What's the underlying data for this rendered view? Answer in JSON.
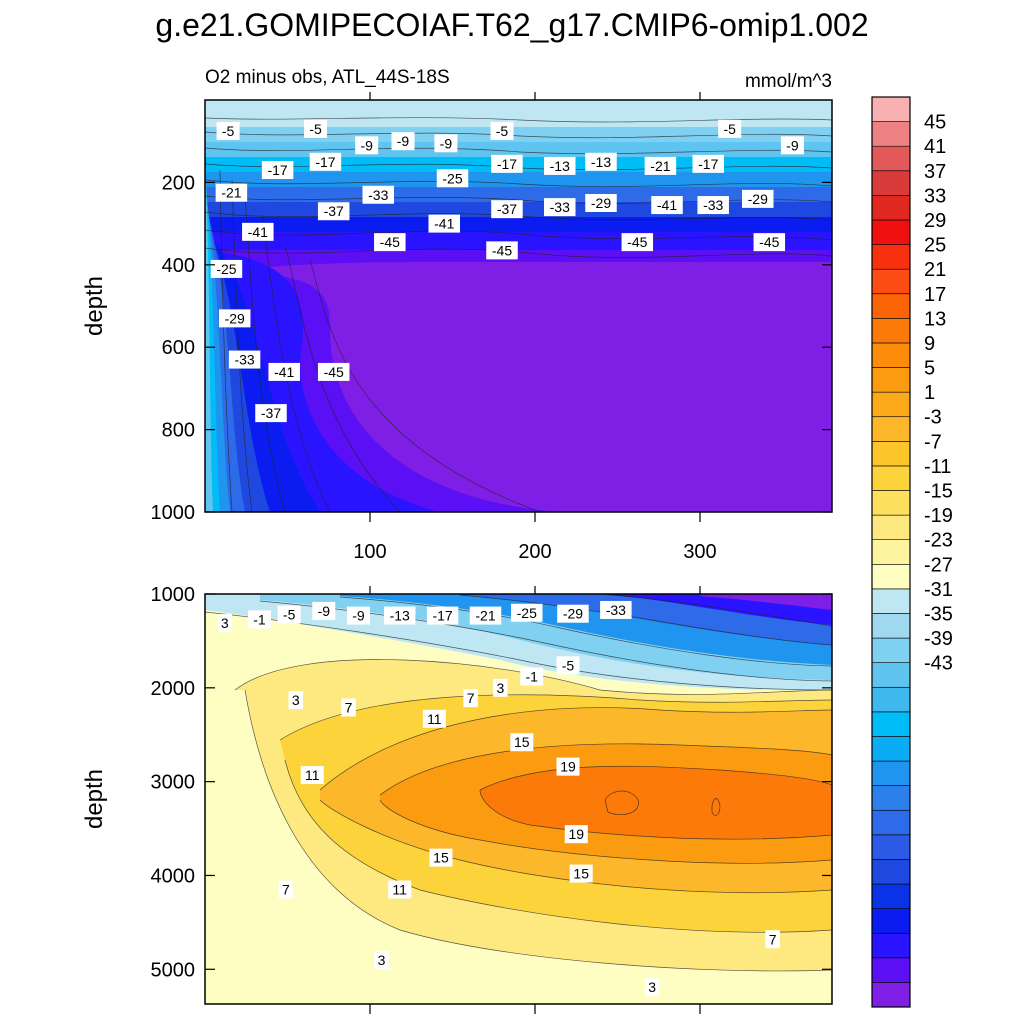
{
  "figure": {
    "title": "g.e21.GOMIPECOIAF.T62_g17.CMIP6-omip1.002"
  },
  "chart_data": [
    {
      "type": "heatmap",
      "panel": "upper",
      "left_title": "O2 minus obs, ATL_44S-18S",
      "right_title": "mmol/m^3",
      "ylabel": "depth",
      "xlabel": "",
      "xlim": [
        0,
        380
      ],
      "ylim": [
        1000,
        0
      ],
      "xticks": [
        100,
        200,
        300
      ],
      "yticks": [
        200,
        400,
        600,
        800,
        1000
      ],
      "contour_labels": [
        {
          "x": 14,
          "y": 75,
          "v": "-5"
        },
        {
          "x": 67,
          "y": 70,
          "v": "-5"
        },
        {
          "x": 180,
          "y": 75,
          "v": "-5"
        },
        {
          "x": 318,
          "y": 70,
          "v": "-5"
        },
        {
          "x": 98,
          "y": 110,
          "v": "-9"
        },
        {
          "x": 120,
          "y": 100,
          "v": "-9"
        },
        {
          "x": 146,
          "y": 105,
          "v": "-9"
        },
        {
          "x": 356,
          "y": 110,
          "v": "-9"
        },
        {
          "x": 44,
          "y": 170,
          "v": "-17"
        },
        {
          "x": 73,
          "y": 150,
          "v": "-17"
        },
        {
          "x": 183,
          "y": 155,
          "v": "-17"
        },
        {
          "x": 305,
          "y": 155,
          "v": "-17"
        },
        {
          "x": 215,
          "y": 160,
          "v": "-13"
        },
        {
          "x": 240,
          "y": 150,
          "v": "-13"
        },
        {
          "x": 276,
          "y": 160,
          "v": "-21"
        },
        {
          "x": 150,
          "y": 190,
          "v": "-25"
        },
        {
          "x": 16,
          "y": 225,
          "v": "-21"
        },
        {
          "x": 105,
          "y": 230,
          "v": "-33"
        },
        {
          "x": 78,
          "y": 270,
          "v": "-37"
        },
        {
          "x": 183,
          "y": 265,
          "v": "-37"
        },
        {
          "x": 215,
          "y": 260,
          "v": "-33"
        },
        {
          "x": 240,
          "y": 250,
          "v": "-29"
        },
        {
          "x": 280,
          "y": 255,
          "v": "-41"
        },
        {
          "x": 308,
          "y": 255,
          "v": "-33"
        },
        {
          "x": 335,
          "y": 240,
          "v": "-29"
        },
        {
          "x": 145,
          "y": 300,
          "v": "-41"
        },
        {
          "x": 32,
          "y": 320,
          "v": "-41"
        },
        {
          "x": 112,
          "y": 345,
          "v": "-45"
        },
        {
          "x": 180,
          "y": 365,
          "v": "-45"
        },
        {
          "x": 262,
          "y": 345,
          "v": "-45"
        },
        {
          "x": 342,
          "y": 345,
          "v": "-45"
        },
        {
          "x": 13,
          "y": 410,
          "v": "-25"
        },
        {
          "x": 18,
          "y": 530,
          "v": "-29"
        },
        {
          "x": 24,
          "y": 630,
          "v": "-33"
        },
        {
          "x": 48,
          "y": 660,
          "v": "-41"
        },
        {
          "x": 78,
          "y": 660,
          "v": "-45"
        },
        {
          "x": 40,
          "y": 760,
          "v": "-37"
        }
      ]
    },
    {
      "type": "heatmap",
      "panel": "lower",
      "ylabel": "depth",
      "xlabel": "",
      "xlim": [
        0,
        380
      ],
      "ylim": [
        5370,
        1000
      ],
      "yticks": [
        1000,
        2000,
        3000,
        4000,
        5000
      ],
      "contour_labels": [
        {
          "x": 12,
          "y": 1310,
          "v": "3"
        },
        {
          "x": 33,
          "y": 1270,
          "v": "-1"
        },
        {
          "x": 51,
          "y": 1220,
          "v": "-5"
        },
        {
          "x": 72,
          "y": 1180,
          "v": "-9"
        },
        {
          "x": 93,
          "y": 1230,
          "v": "-9"
        },
        {
          "x": 118,
          "y": 1230,
          "v": "-13"
        },
        {
          "x": 144,
          "y": 1230,
          "v": "-17"
        },
        {
          "x": 170,
          "y": 1230,
          "v": "-21"
        },
        {
          "x": 195,
          "y": 1200,
          "v": "-25"
        },
        {
          "x": 223,
          "y": 1210,
          "v": "-29"
        },
        {
          "x": 249,
          "y": 1170,
          "v": "-33"
        },
        {
          "x": 198,
          "y": 1880,
          "v": "-1"
        },
        {
          "x": 220,
          "y": 1760,
          "v": "-5"
        },
        {
          "x": 179,
          "y": 2000,
          "v": "3"
        },
        {
          "x": 55,
          "y": 2130,
          "v": "3"
        },
        {
          "x": 87,
          "y": 2210,
          "v": "7"
        },
        {
          "x": 161,
          "y": 2110,
          "v": "7"
        },
        {
          "x": 139,
          "y": 2330,
          "v": "11"
        },
        {
          "x": 192,
          "y": 2580,
          "v": "15"
        },
        {
          "x": 65,
          "y": 2930,
          "v": "11"
        },
        {
          "x": 220,
          "y": 2840,
          "v": "19"
        },
        {
          "x": 225,
          "y": 3560,
          "v": "19"
        },
        {
          "x": 143,
          "y": 3810,
          "v": "15"
        },
        {
          "x": 228,
          "y": 3980,
          "v": "15"
        },
        {
          "x": 118,
          "y": 4150,
          "v": "11"
        },
        {
          "x": 49,
          "y": 4150,
          "v": "7"
        },
        {
          "x": 344,
          "y": 4680,
          "v": "7"
        },
        {
          "x": 107,
          "y": 4900,
          "v": "3"
        },
        {
          "x": 271,
          "y": 5190,
          "v": "3"
        }
      ]
    },
    {
      "type": "colorbar",
      "labels": [
        "45",
        "41",
        "37",
        "33",
        "29",
        "25",
        "21",
        "17",
        "13",
        "9",
        "5",
        "1",
        "-3",
        "-7",
        "-11",
        "-15",
        "-19",
        "-23",
        "-27",
        "-31",
        "-35",
        "-39",
        "-43"
      ],
      "colors": [
        "#7f1fe6",
        "#5a0ff5",
        "#2a14ff",
        "#0a1cf0",
        "#0a33e8",
        "#1f48e0",
        "#2a5ae6",
        "#2d6be8",
        "#2d7fec",
        "#1f95f0",
        "#0aadf5",
        "#00bdf8",
        "#3fb8ee",
        "#5fc4f0",
        "#80d0f2",
        "#9fd8ef",
        "#bee6f3",
        "#fefec2",
        "#fdf4a0",
        "#fde980",
        "#fde05d",
        "#fcd33a",
        "#fcc62b",
        "#fcb82a",
        "#fcaa1a",
        "#fb9b10",
        "#fc8c0a",
        "#fc7a0a",
        "#fb6404",
        "#fb4c14",
        "#f73010",
        "#f01010",
        "#e02820",
        "#d93a3a",
        "#e35858",
        "#ee8282",
        "#f8b0b0"
      ]
    }
  ]
}
